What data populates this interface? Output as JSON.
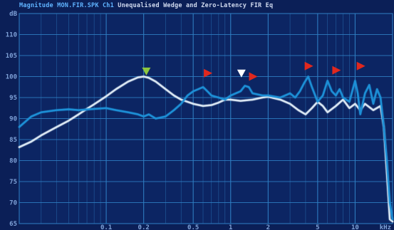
{
  "title": {
    "part1": "Magnitude MON.FIR.SPK Ch1",
    "part2": "Unequalised Wedge and Zero-Latency FIR Eq"
  },
  "colors": {
    "background": "#0b1f57",
    "grid": "#2f7fc4",
    "series_unequalised": "#1f8fd6",
    "series_fir_eq": "#d9e6f2",
    "marker_green": "#8dc63f",
    "marker_red": "#e0281e",
    "marker_white": "#ffffff"
  },
  "chart_data": {
    "type": "line",
    "title": "Magnitude MON.FIR.SPK Ch1  Unequalised Wedge and Zero-Latency FIR Eq",
    "xlabel": "",
    "ylabel": "",
    "xscale": "log",
    "xlim": [
      0.02,
      20
    ],
    "ylim": [
      65,
      115
    ],
    "x_ticks": [
      {
        "value": 0.1,
        "label": "0.1"
      },
      {
        "value": 0.2,
        "label": "0.2"
      },
      {
        "value": 0.5,
        "label": "0.5"
      },
      {
        "value": 1,
        "label": "1"
      },
      {
        "value": 2,
        "label": "2"
      },
      {
        "value": 5,
        "label": "5"
      },
      {
        "value": 10,
        "label": "10"
      },
      {
        "value": 20,
        "label": "kHz"
      }
    ],
    "y_ticks": [
      {
        "value": 110,
        "label": "110"
      },
      {
        "value": 105,
        "label": "105"
      },
      {
        "value": 100,
        "label": "100"
      },
      {
        "value": 95,
        "label": "95"
      },
      {
        "value": 90,
        "label": "90"
      },
      {
        "value": 85,
        "label": "85"
      },
      {
        "value": 80,
        "label": "80"
      },
      {
        "value": 75,
        "label": "75"
      },
      {
        "value": 70,
        "label": "70"
      },
      {
        "value": 65,
        "label": "65"
      }
    ],
    "y_top_label": "dB",
    "grid": true,
    "series": [
      {
        "color": "#d9e6f2",
        "x": [
          0.02,
          0.025,
          0.03,
          0.04,
          0.05,
          0.06,
          0.07,
          0.08,
          0.1,
          0.12,
          0.15,
          0.18,
          0.2,
          0.22,
          0.25,
          0.3,
          0.35,
          0.4,
          0.5,
          0.6,
          0.7,
          0.8,
          0.9,
          1.0,
          1.2,
          1.5,
          1.8,
          2.0,
          2.5,
          3.0,
          3.5,
          4.0,
          4.5,
          5.0,
          5.5,
          6.0,
          7.0,
          8.0,
          9.0,
          10.0,
          11.0,
          12.0,
          14.0,
          16.0,
          17.0,
          18.0,
          19.0,
          20.0
        ],
        "y": [
          83.2,
          84.5,
          86.0,
          88.0,
          89.5,
          91.0,
          92.3,
          93.4,
          95.3,
          97.0,
          98.8,
          99.8,
          100.0,
          99.7,
          98.8,
          97.0,
          95.5,
          94.5,
          93.5,
          93.0,
          93.2,
          93.8,
          94.5,
          94.5,
          94.2,
          94.5,
          95.0,
          95.2,
          94.5,
          93.5,
          92.0,
          91.0,
          92.5,
          94.0,
          93.0,
          91.5,
          93.0,
          94.5,
          92.5,
          93.5,
          92.0,
          93.5,
          92.0,
          93.0,
          88.0,
          77.0,
          66.0,
          65.5
        ]
      },
      {
        "color": "#1f8fd6",
        "x": [
          0.02,
          0.025,
          0.03,
          0.04,
          0.05,
          0.06,
          0.08,
          0.1,
          0.12,
          0.15,
          0.18,
          0.2,
          0.22,
          0.25,
          0.3,
          0.35,
          0.4,
          0.45,
          0.5,
          0.55,
          0.6,
          0.65,
          0.7,
          0.8,
          0.9,
          1.0,
          1.2,
          1.3,
          1.4,
          1.5,
          1.8,
          2.0,
          2.5,
          3.0,
          3.3,
          3.6,
          3.9,
          4.2,
          4.5,
          5.0,
          5.5,
          6.0,
          6.5,
          7.0,
          7.5,
          8.0,
          9.0,
          10.0,
          10.5,
          11.0,
          12.0,
          13.0,
          14.0,
          15.0,
          16.0,
          17.0,
          18.0,
          19.0,
          20.0
        ],
        "y": [
          88.0,
          90.5,
          91.5,
          92.0,
          92.2,
          92.0,
          92.3,
          92.5,
          92.0,
          91.5,
          91.0,
          90.5,
          91.0,
          90.0,
          90.5,
          92.0,
          93.5,
          95.5,
          96.5,
          97.0,
          97.5,
          96.5,
          95.5,
          95.0,
          94.5,
          95.5,
          96.5,
          97.8,
          97.5,
          96.0,
          95.5,
          95.5,
          95.0,
          96.0,
          95.0,
          96.5,
          98.5,
          100.0,
          97.5,
          94.0,
          95.5,
          99.0,
          96.5,
          95.5,
          97.0,
          95.0,
          94.0,
          99.0,
          96.0,
          91.0,
          96.0,
          98.0,
          93.5,
          97.0,
          95.0,
          88.0,
          80.0,
          70.0,
          66.0
        ]
      }
    ],
    "annotations": [
      {
        "shape": "triangle-down",
        "color": "#8dc63f",
        "x": 0.21,
        "y": 101.3
      },
      {
        "shape": "triangle-right",
        "color": "#e0281e",
        "x": 0.65,
        "y": 100.8
      },
      {
        "shape": "triangle-down",
        "color": "#ffffff",
        "x": 1.22,
        "y": 100.8
      },
      {
        "shape": "triangle-right",
        "color": "#e0281e",
        "x": 1.5,
        "y": 100.0
      },
      {
        "shape": "triangle-right",
        "color": "#e0281e",
        "x": 4.2,
        "y": 102.5
      },
      {
        "shape": "triangle-right",
        "color": "#e0281e",
        "x": 7.0,
        "y": 101.5
      },
      {
        "shape": "triangle-right",
        "color": "#e0281e",
        "x": 11.0,
        "y": 102.5
      }
    ]
  }
}
